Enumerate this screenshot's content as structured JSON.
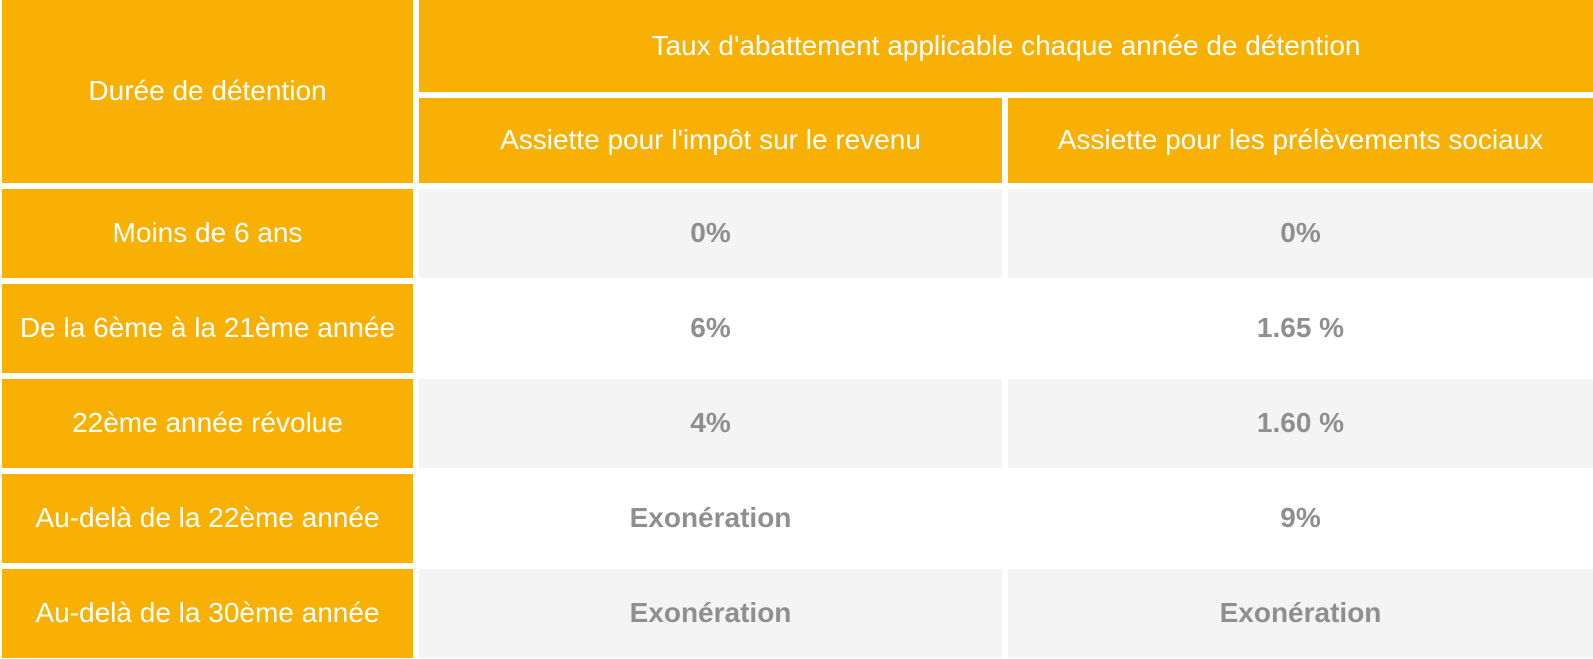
{
  "colors": {
    "orange": "#F8B004",
    "row_shaded": "#F4F4F4",
    "row_plain": "#FFFFFF",
    "header_text": "#FFFFFF",
    "value_text": "#8F8F8F"
  },
  "table": {
    "corner_header": "Durée de détention",
    "group_header": "Taux d'abattement applicable chaque année de détention",
    "subheaders": {
      "income_tax": "Assiette pour l'impôt sur le revenu",
      "social_levies": "Assiette pour les prélèvements sociaux"
    },
    "rows": [
      {
        "label": "Moins de 6 ans",
        "income_tax": "0%",
        "social_levies": "0%"
      },
      {
        "label": "De la 6ème à la 21ème année",
        "income_tax": "6%",
        "social_levies": "1.65 %"
      },
      {
        "label": "22ème année révolue",
        "income_tax": "4%",
        "social_levies": "1.60 %"
      },
      {
        "label": "Au-delà de la 22ème année",
        "income_tax": "Exonération",
        "social_levies": "9%"
      },
      {
        "label": "Au-delà de la 30ème année",
        "income_tax": "Exonération",
        "social_levies": "Exonération"
      }
    ]
  },
  "chart_data": {
    "type": "table",
    "title": "Taux d'abattement applicable chaque année de détention",
    "columns": [
      "Durée de détention",
      "Assiette pour l'impôt sur le revenu",
      "Assiette pour les prélèvements sociaux"
    ],
    "rows": [
      [
        "Moins de 6 ans",
        "0%",
        "0%"
      ],
      [
        "De la 6ème à la 21ème année",
        "6%",
        "1.65 %"
      ],
      [
        "22ème année révolue",
        "4%",
        "1.60 %"
      ],
      [
        "Au-delà de la 22ème année",
        "Exonération",
        "9%"
      ],
      [
        "Au-delà de la 30ème année",
        "Exonération",
        "Exonération"
      ]
    ]
  }
}
